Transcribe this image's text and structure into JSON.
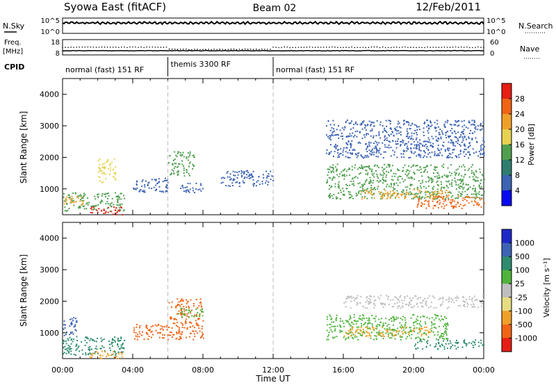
{
  "header": {
    "station": "Syowa East (fitACF)",
    "beam": "Beam 02",
    "date": "12/Feb/2011"
  },
  "noise_panel": {
    "left_label": "N.Sky",
    "right_label": "N.Search",
    "left_ticks": [
      "10^5",
      "10^0"
    ],
    "right_ticks": [
      "10^5",
      "10^0"
    ]
  },
  "freq_panel": {
    "left_label_line1": "Freq.",
    "left_label_line2": "[MHz]",
    "right_label": "Nave",
    "left_ticks": [
      "18",
      "8"
    ],
    "right_ticks": [
      "60",
      "0"
    ]
  },
  "cpid": {
    "label": "CPID",
    "segments": [
      {
        "start_hour": 0,
        "end_hour": 6,
        "label": "normal (fast) 151 RF"
      },
      {
        "start_hour": 6,
        "end_hour": 12,
        "label": "themis 3300 RF"
      },
      {
        "start_hour": 12,
        "end_hour": 24,
        "label": "normal (fast) 151 RF"
      }
    ]
  },
  "range_axis": {
    "label": "Slant Range [km]",
    "ticks": [
      "1000",
      "2000",
      "3000",
      "4000"
    ]
  },
  "time_axis": {
    "label": "Time UT",
    "ticks": [
      "00:00",
      "04:00",
      "08:00",
      "12:00",
      "16:00",
      "20:00",
      "00:00"
    ]
  },
  "power_colorbar": {
    "label": "Power [dB]",
    "ticks": [
      "28",
      "24",
      "20",
      "16",
      "12",
      "8",
      "4"
    ],
    "colors": [
      "#0a0af0",
      "#3c64b4",
      "#2e7d6e",
      "#50a050",
      "#e6d250",
      "#f0a028",
      "#f06414",
      "#e61e14"
    ]
  },
  "velocity_colorbar": {
    "label": "Velocity [m s⁻¹]",
    "ticks": [
      "1000",
      "500",
      "100",
      "25",
      "-25",
      "-100",
      "-500",
      "-1000"
    ],
    "colors": [
      "#e61e14",
      "#f06414",
      "#f0a028",
      "#e6dc82",
      "#bebebe",
      "#50b43c",
      "#2e8c6e",
      "#3c64b4",
      "#1e28c8"
    ]
  },
  "chart_data": {
    "type": "heatmap",
    "x_range_hours": [
      0,
      24
    ],
    "y_range_km": [
      180,
      4500
    ],
    "panels": [
      {
        "quantity": "Power",
        "blobs": [
          {
            "t": [
              0,
              3.5
            ],
            "r": [
              300,
              900
            ],
            "color": "#50a050"
          },
          {
            "t": [
              1.5,
              3.5
            ],
            "r": [
              200,
              450
            ],
            "color": "#e61e14"
          },
          {
            "t": [
              0,
              1.2
            ],
            "r": [
              500,
              800
            ],
            "color": "#f0a028"
          },
          {
            "t": [
              2,
              3
            ],
            "r": [
              1200,
              2000
            ],
            "color": "#e6d250"
          },
          {
            "t": [
              4,
              6
            ],
            "r": [
              900,
              1400
            ],
            "color": "#3c64b4"
          },
          {
            "t": [
              6,
              7.5
            ],
            "r": [
              1400,
              2200
            ],
            "color": "#50a050"
          },
          {
            "t": [
              6.5,
              8
            ],
            "r": [
              900,
              1200
            ],
            "color": "#3c64b4"
          },
          {
            "t": [
              9,
              12
            ],
            "r": [
              1100,
              1600
            ],
            "color": "#3c64b4"
          },
          {
            "t": [
              15,
              24
            ],
            "r": [
              700,
              1800
            ],
            "color": "#50a050"
          },
          {
            "t": [
              17,
              22
            ],
            "r": [
              700,
              1000
            ],
            "color": "#f0a028"
          },
          {
            "t": [
              20,
              24
            ],
            "r": [
              400,
              800
            ],
            "color": "#f06414"
          },
          {
            "t": [
              15,
              24
            ],
            "r": [
              2000,
              3200
            ],
            "color": "#3c64b4"
          }
        ]
      },
      {
        "quantity": "Velocity",
        "blobs": [
          {
            "t": [
              0,
              3.5
            ],
            "r": [
              300,
              900
            ],
            "color": "#2e8c6e"
          },
          {
            "t": [
              0,
              0.8
            ],
            "r": [
              900,
              1500
            ],
            "color": "#3c64b4"
          },
          {
            "t": [
              1.5,
              3.5
            ],
            "r": [
              200,
              450
            ],
            "color": "#f0a028"
          },
          {
            "t": [
              4,
              6
            ],
            "r": [
              800,
              1300
            ],
            "color": "#f06414"
          },
          {
            "t": [
              6,
              8
            ],
            "r": [
              800,
              2100
            ],
            "color": "#f06414"
          },
          {
            "t": [
              6.5,
              8
            ],
            "r": [
              1500,
              1800
            ],
            "color": "#50b43c"
          },
          {
            "t": [
              15,
              22
            ],
            "r": [
              800,
              1600
            ],
            "color": "#50b43c"
          },
          {
            "t": [
              16,
              21
            ],
            "r": [
              900,
              1200
            ],
            "color": "#f0a028"
          },
          {
            "t": [
              20,
              24
            ],
            "r": [
              500,
              800
            ],
            "color": "#2e8c6e"
          },
          {
            "t": [
              16,
              24
            ],
            "r": [
              1800,
              2200
            ],
            "color": "#bebebe"
          }
        ]
      }
    ]
  }
}
